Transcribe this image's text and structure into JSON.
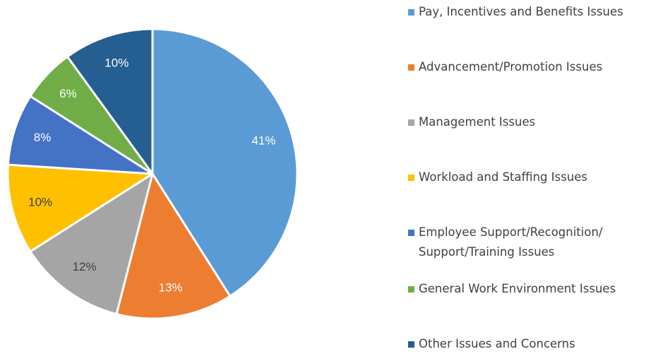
{
  "chart_data": {
    "type": "pie",
    "categories": [
      "Pay, Incentives and Benefits Issues",
      "Advancement/Promotion Issues",
      "Management Issues",
      "Workload and Staffing Issues",
      "Employee Support/Recognition/ Support/Training Issues",
      "General Work Environment Issues",
      "Other Issues and Concerns"
    ],
    "values": [
      41,
      13,
      12,
      10,
      8,
      6,
      10
    ],
    "value_labels": [
      "41%",
      "13%",
      "12%",
      "10%",
      "8%",
      "6%",
      "10%"
    ],
    "colors": [
      "#5b9bd5",
      "#ed7d31",
      "#a5a5a5",
      "#ffc000",
      "#4472c4",
      "#70ad47",
      "#255e91"
    ],
    "label_colors": [
      "#ffffff",
      "#ffffff",
      "#404040",
      "#404040",
      "#ffffff",
      "#ffffff",
      "#ffffff"
    ],
    "legend": "right"
  }
}
